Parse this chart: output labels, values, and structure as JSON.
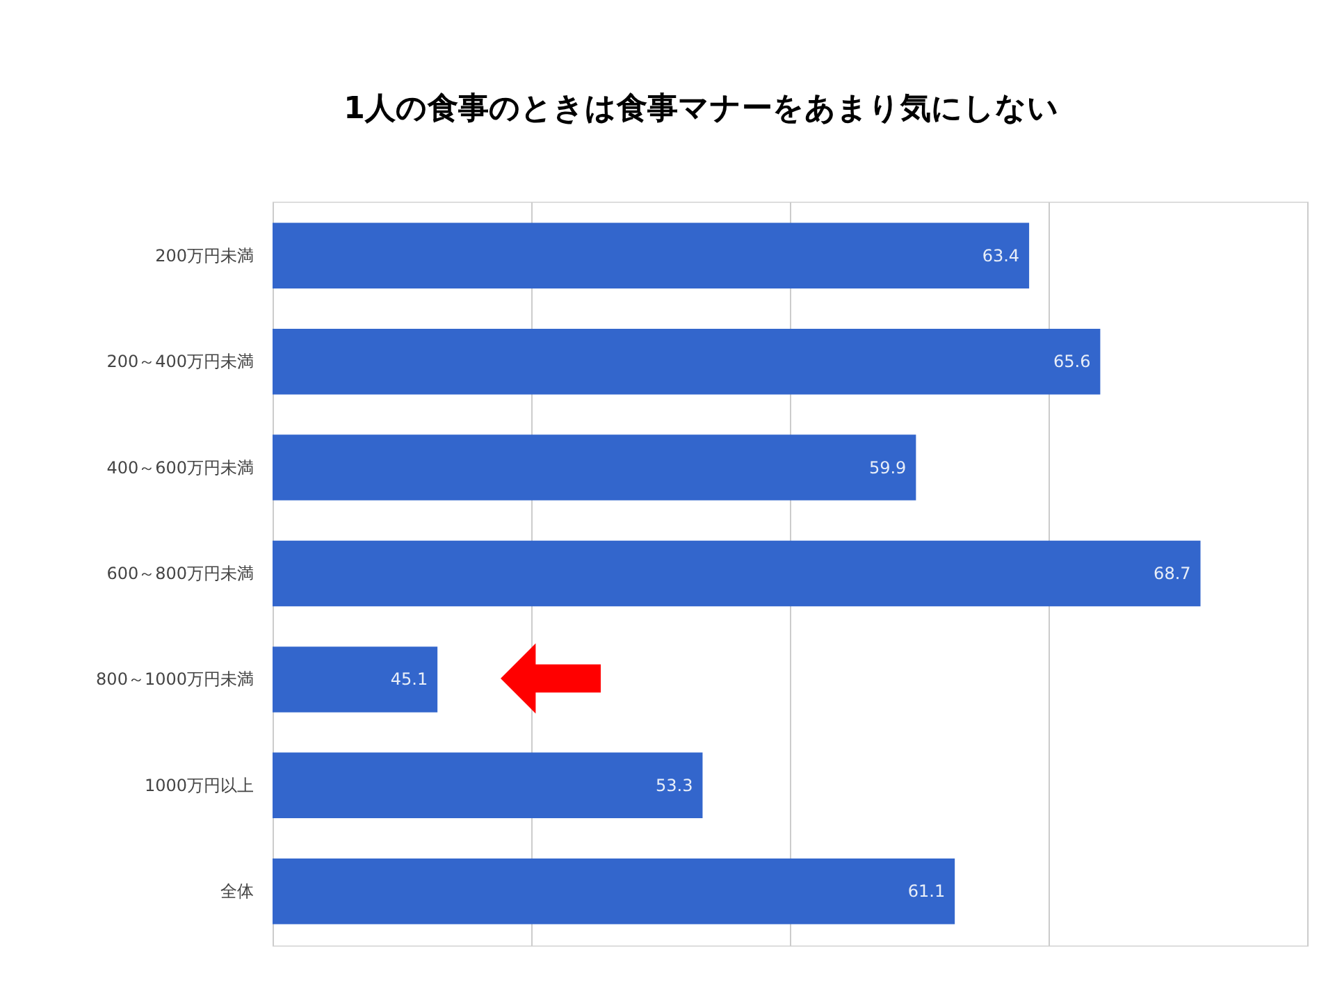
{
  "chart_data": {
    "type": "bar",
    "orientation": "horizontal",
    "title": "1人の食事のときは食事マナーをあまり気にしない",
    "categories": [
      "200万円未満",
      "200～400万円未満",
      "400～600万円未満",
      "600～800万円未満",
      "800～1000万円未満",
      "1000万円以上",
      "全体"
    ],
    "values": [
      63.4,
      65.6,
      59.9,
      68.7,
      45.1,
      53.3,
      61.1
    ],
    "color": "#3366cc",
    "xlim": [
      40,
      72
    ],
    "xticks": [
      {
        "value": 40,
        "label": null
      },
      {
        "value": 48,
        "label": null
      },
      {
        "value": 56,
        "label": null
      },
      {
        "value": 64,
        "label": null
      },
      {
        "value": 72,
        "label": null
      }
    ],
    "tick_labels": "y",
    "grid": "x",
    "data_labels": true
  }
}
